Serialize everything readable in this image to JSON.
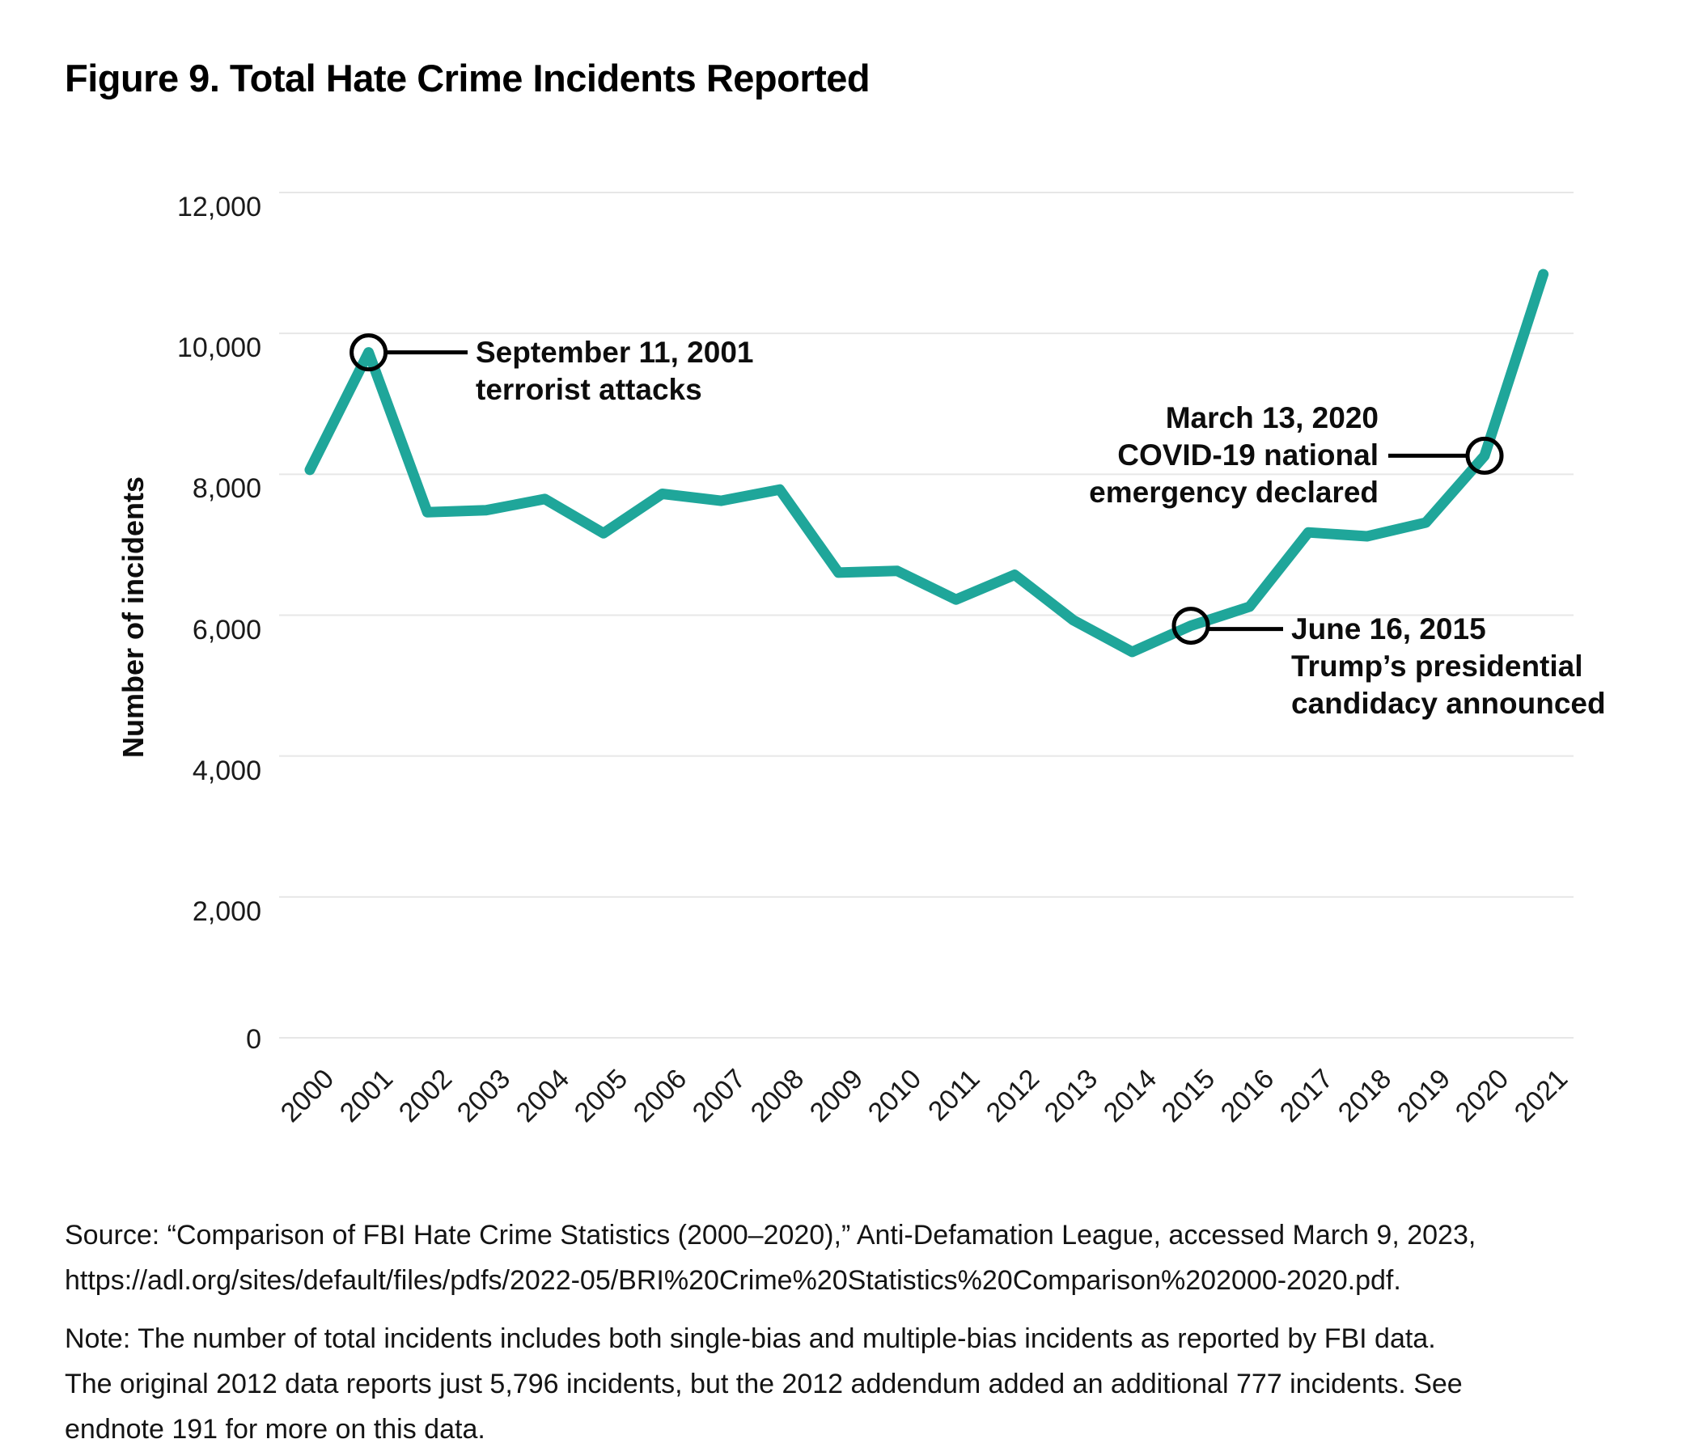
{
  "title": "Figure 9. Total Hate Crime Incidents Reported",
  "colors": {
    "line": "#1FA69A",
    "grid": "#E7E7E7",
    "annotation": "#000000",
    "text": "#111111"
  },
  "chart_data": {
    "type": "line",
    "title": "Figure 9. Total Hate Crime Incidents Reported",
    "xlabel": "",
    "ylabel": "Number of incidents",
    "x": [
      2000,
      2001,
      2002,
      2003,
      2004,
      2005,
      2006,
      2007,
      2008,
      2009,
      2010,
      2011,
      2012,
      2013,
      2014,
      2015,
      2016,
      2017,
      2018,
      2019,
      2020,
      2021
    ],
    "values": [
      8063,
      9730,
      7462,
      7489,
      7649,
      7163,
      7722,
      7624,
      7783,
      6604,
      6628,
      6222,
      6573,
      5928,
      5479,
      5850,
      6121,
      7175,
      7120,
      7314,
      8263,
      10840
    ],
    "ylim": [
      0,
      12000
    ],
    "ytick_interval": 2000,
    "grid": "horizontal",
    "legend": "none",
    "line_color": "#1FA69A",
    "annotations": [
      {
        "id": "sept11",
        "year": 2001,
        "lines": [
          "September 11, 2001",
          "terrorist attacks"
        ]
      },
      {
        "id": "trump",
        "year": 2015,
        "lines": [
          "June 16, 2015",
          "Trump’s presidential",
          "candidacy announced"
        ]
      },
      {
        "id": "covid",
        "year": 2020,
        "lines": [
          "March 13, 2020",
          "COVID-19 national",
          "emergency declared"
        ]
      }
    ]
  },
  "source_lines": [
    "Source: “Comparison of FBI Hate Crime Statistics (2000–2020),” Anti-Defamation League, accessed March 9, 2023,",
    "https://adl.org/sites/default/files/pdfs/2022-05/BRI%20Crime%20Statistics%20Comparison%202000-2020.pdf."
  ],
  "note_lines": [
    "Note: The number of total incidents includes both single-bias and multiple-bias incidents as reported by FBI data.",
    "The original 2012 data reports just 5,796 incidents, but the 2012 addendum added an additional 777 incidents. See",
    "endnote 191 for more on this data."
  ]
}
